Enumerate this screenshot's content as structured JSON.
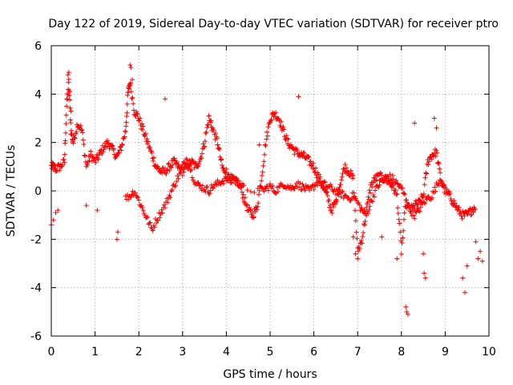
{
  "chart_data": {
    "type": "scatter",
    "title": "Day 122 of 2019, Sidereal Day-to-day VTEC variation (SDTVAR) for receiver ptro",
    "xlabel": "GPS time / hours",
    "ylabel": "SDTVAR / TECUs",
    "xlim": [
      0,
      10
    ],
    "ylim": [
      -6,
      6
    ],
    "xticks": [
      0,
      1,
      2,
      3,
      4,
      5,
      6,
      7,
      8,
      9,
      10
    ],
    "yticks": [
      -6,
      -4,
      -2,
      0,
      2,
      4,
      6
    ],
    "grid": true,
    "marker": "plus",
    "point_color": "#ff0000",
    "series": [
      {
        "name": "SDTVAR",
        "trend": {
          "x": [
            0,
            0.05,
            0.1,
            0.2,
            0.3,
            0.35,
            0.4,
            0.45,
            0.5,
            0.6,
            0.7,
            0.8,
            0.9,
            1.0,
            1.1,
            1.2,
            1.3,
            1.4,
            1.5,
            1.6,
            1.7,
            1.75,
            1.8,
            1.9,
            2.0,
            2.1,
            2.2,
            2.3,
            2.4,
            2.5,
            2.6,
            2.7,
            2.8,
            2.9,
            3.0,
            3.1,
            3.2,
            3.3,
            3.4,
            3.5,
            3.6,
            3.7,
            3.8,
            3.9,
            4.0,
            4.1,
            4.2,
            4.3,
            4.4,
            4.5,
            4.6,
            4.7,
            4.8,
            4.9,
            5.0,
            5.1,
            5.2,
            5.3,
            5.4,
            5.5,
            5.6,
            5.7,
            5.8,
            5.9,
            6.0,
            6.1,
            6.2,
            6.3,
            6.4,
            6.5,
            6.6,
            6.7,
            6.8,
            6.9,
            7.0,
            7.1,
            7.2,
            7.3,
            7.4,
            7.5,
            7.6,
            7.7,
            7.8,
            7.9,
            8.0,
            8.1,
            8.2,
            8.3,
            8.4,
            8.5,
            8.6,
            8.7,
            8.8,
            8.9,
            9.0,
            9.1,
            9.2,
            9.3,
            9.4,
            9.5,
            9.6,
            9.7
          ],
          "y": [
            1.0,
            1.0,
            0.9,
            1.0,
            1.2,
            3.5,
            4.5,
            2.5,
            2.0,
            2.8,
            2.5,
            1.0,
            1.5,
            1.2,
            1.5,
            1.8,
            2.0,
            1.7,
            1.4,
            1.8,
            2.5,
            4.0,
            4.5,
            3.3,
            3.0,
            2.5,
            2.0,
            1.5,
            1.0,
            0.8,
            0.8,
            1.0,
            1.2,
            1.0,
            0.8,
            1.0,
            1.2,
            1.0,
            1.3,
            2.0,
            3.0,
            2.5,
            2.0,
            1.0,
            0.6,
            0.5,
            0.4,
            0.3,
            -0.3,
            -0.8,
            -1.0,
            -0.7,
            0.5,
            2.0,
            3.0,
            3.2,
            3.0,
            2.5,
            2.0,
            1.8,
            1.6,
            1.5,
            1.4,
            1.2,
            1.0,
            0.6,
            0.2,
            -0.2,
            -0.8,
            -0.5,
            0.3,
            1.0,
            0.8,
            0.5,
            -2.5,
            -2.0,
            -0.8,
            0.2,
            0.5,
            0.6,
            0.5,
            0.4,
            0.2,
            -0.2,
            -2.5,
            -0.5,
            -0.8,
            -0.6,
            -0.5,
            -0.2,
            1.2,
            1.5,
            1.6,
            0.5,
            0.0,
            -0.2,
            -0.5,
            -0.8,
            -1.0,
            -1.0,
            -0.8,
            -0.6
          ]
        },
        "lower_branch": {
          "x": [
            1.7,
            1.8,
            1.9,
            2.0,
            2.1,
            2.2,
            2.3,
            2.4,
            2.5,
            2.6,
            2.7,
            2.8,
            2.9,
            3.0,
            3.1,
            3.2,
            3.3,
            3.4,
            3.5,
            3.6,
            3.7,
            3.8,
            3.9,
            4.0,
            4.1,
            4.2,
            4.3,
            4.4,
            4.8,
            4.9,
            5.0,
            5.1,
            5.2,
            5.3,
            5.4,
            5.5,
            5.6,
            5.7,
            5.8,
            5.9,
            6.0,
            6.1,
            6.2,
            6.3,
            6.4,
            6.5,
            6.6,
            6.7,
            6.8,
            6.9,
            7.0,
            7.1,
            7.2,
            7.3,
            7.4,
            7.5,
            7.6,
            7.7,
            7.8,
            7.9,
            8.0,
            8.1,
            8.2,
            8.3,
            8.4,
            8.5,
            8.6,
            8.7,
            8.8,
            8.9,
            9.0
          ],
          "y": [
            -0.3,
            -0.2,
            0.0,
            -0.4,
            -0.8,
            -1.2,
            -1.6,
            -1.2,
            -0.9,
            -0.6,
            -0.2,
            0.2,
            0.6,
            1.0,
            1.4,
            0.8,
            0.3,
            0.2,
            0.1,
            0.0,
            0.2,
            0.3,
            0.4,
            0.5,
            0.6,
            0.4,
            0.3,
            0.1,
            0.0,
            0.1,
            0.2,
            0.0,
            0.1,
            0.3,
            0.2,
            0.1,
            0.3,
            0.2,
            0.1,
            0.0,
            0.2,
            0.4,
            0.3,
            0.2,
            0.1,
            0.0,
            -0.1,
            -0.2,
            -0.3,
            -0.2,
            -0.5,
            -0.8,
            -1.0,
            -0.5,
            0.0,
            0.3,
            0.5,
            0.6,
            0.5,
            0.3,
            0.1,
            -0.3,
            -0.8,
            -1.0,
            -0.8,
            -0.5,
            -0.3,
            -0.2,
            0.2,
            0.5,
            0.1
          ]
        },
        "outliers": [
          [
            0.0,
            -1.4
          ],
          [
            0.05,
            -1.2
          ],
          [
            0.1,
            -0.9
          ],
          [
            0.15,
            -0.8
          ],
          [
            0.38,
            4.8
          ],
          [
            0.4,
            4.9
          ],
          [
            0.42,
            4.1
          ],
          [
            0.45,
            3.3
          ],
          [
            0.8,
            -0.6
          ],
          [
            1.05,
            -0.8
          ],
          [
            1.5,
            -2.0
          ],
          [
            1.52,
            -1.7
          ],
          [
            1.8,
            5.2
          ],
          [
            1.82,
            5.1
          ],
          [
            1.85,
            4.6
          ],
          [
            2.6,
            3.8
          ],
          [
            3.6,
            3.1
          ],
          [
            3.65,
            2.9
          ],
          [
            4.0,
            0.9
          ],
          [
            4.75,
            1.9
          ],
          [
            5.65,
            3.9
          ],
          [
            6.9,
            -1.9
          ],
          [
            6.95,
            -2.6
          ],
          [
            7.0,
            -2.8
          ],
          [
            7.55,
            -1.9
          ],
          [
            7.9,
            -2.8
          ],
          [
            8.1,
            -4.8
          ],
          [
            8.12,
            -5.0
          ],
          [
            8.15,
            -5.1
          ],
          [
            8.5,
            -2.6
          ],
          [
            8.52,
            -3.4
          ],
          [
            8.55,
            -3.6
          ],
          [
            8.3,
            2.8
          ],
          [
            8.75,
            3.0
          ],
          [
            8.8,
            2.6
          ],
          [
            9.4,
            -3.6
          ],
          [
            9.45,
            -4.2
          ],
          [
            9.5,
            -3.1
          ],
          [
            9.75,
            -2.8
          ],
          [
            9.8,
            -2.5
          ],
          [
            9.85,
            -2.9
          ],
          [
            9.7,
            -2.1
          ]
        ]
      }
    ]
  }
}
